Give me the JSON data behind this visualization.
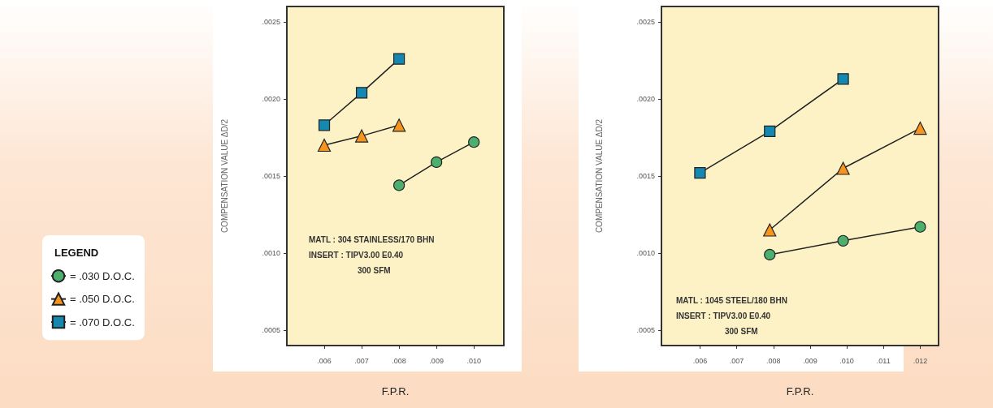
{
  "chart_data": [
    {
      "type": "line",
      "xlabel": "F.P.R.",
      "ylabel": "COMPENSATION VALUE ΔD/2",
      "legend_title": "LEGEND",
      "legend": "left",
      "grid": false,
      "xlim": [
        0.005,
        0.0108
      ],
      "ylim": [
        0.0004,
        0.0026
      ],
      "xticks": [
        {
          "value": 0.006,
          "label": ".006"
        },
        {
          "value": 0.007,
          "label": ".007"
        },
        {
          "value": 0.008,
          "label": ".008"
        },
        {
          "value": 0.009,
          "label": ".009"
        },
        {
          "value": 0.01,
          "label": ".010"
        }
      ],
      "yticks": [
        {
          "value": 0.0005,
          "label": ".0005"
        },
        {
          "value": 0.001,
          "label": ".0010"
        },
        {
          "value": 0.0015,
          "label": ".0015"
        },
        {
          "value": 0.002,
          "label": ".0020"
        },
        {
          "value": 0.0025,
          "label": ".0025"
        }
      ],
      "annotations": [
        "MATL : 304 STAINLESS/170 BHN",
        "INSERT : TIPV3.00 E0.40",
        "300 SFM"
      ],
      "series": [
        {
          "name": "= .030 D.O.C.",
          "color": "#4caf6e",
          "marker": "circle",
          "x": [
            0.008,
            0.009,
            0.01
          ],
          "values": [
            0.00144,
            0.00159,
            0.00172
          ]
        },
        {
          "name": "= .050 D.O.C.",
          "color": "#f7941d",
          "marker": "triangle",
          "x": [
            0.006,
            0.007,
            0.008
          ],
          "values": [
            0.0017,
            0.00176,
            0.00183
          ]
        },
        {
          "name": "= .070 D.O.C.",
          "color": "#1488b0",
          "marker": "square",
          "x": [
            0.006,
            0.007,
            0.008
          ],
          "values": [
            0.00183,
            0.00204,
            0.00226
          ]
        }
      ]
    },
    {
      "type": "line",
      "xlabel": "F.P.R.",
      "ylabel": "COMPENSATION VALUE ΔD/2",
      "grid": false,
      "xlim": [
        0.00495,
        0.0125
      ],
      "ylim": [
        0.0004,
        0.0026
      ],
      "xticks": [
        {
          "value": 0.006,
          "label": ".006"
        },
        {
          "value": 0.007,
          "label": ".007"
        },
        {
          "value": 0.008,
          "label": ".008"
        },
        {
          "value": 0.009,
          "label": ".009"
        },
        {
          "value": 0.01,
          "label": ".010"
        },
        {
          "value": 0.011,
          "label": ".011"
        },
        {
          "value": 0.012,
          "label": ".012"
        }
      ],
      "yticks": [
        {
          "value": 0.0005,
          "label": ".0005"
        },
        {
          "value": 0.001,
          "label": ".0010"
        },
        {
          "value": 0.0015,
          "label": ".0015"
        },
        {
          "value": 0.002,
          "label": ".0020"
        },
        {
          "value": 0.0025,
          "label": ".0025"
        }
      ],
      "annotations": [
        "MATL : 1045 STEEL/180 BHN",
        "INSERT : TIPV3.00 E0.40",
        "300 SFM"
      ],
      "series": [
        {
          "color": "#4caf6e",
          "marker": "circle",
          "x": [
            0.0079,
            0.0099,
            0.012
          ],
          "values": [
            0.00099,
            0.00108,
            0.00117
          ]
        },
        {
          "color": "#f7941d",
          "marker": "triangle",
          "x": [
            0.0079,
            0.0099,
            0.012
          ],
          "values": [
            0.00115,
            0.00155,
            0.00181
          ]
        },
        {
          "color": "#1488b0",
          "marker": "square",
          "x": [
            0.006,
            0.0079,
            0.0099
          ],
          "values": [
            0.00152,
            0.00179,
            0.00213
          ]
        }
      ]
    }
  ]
}
